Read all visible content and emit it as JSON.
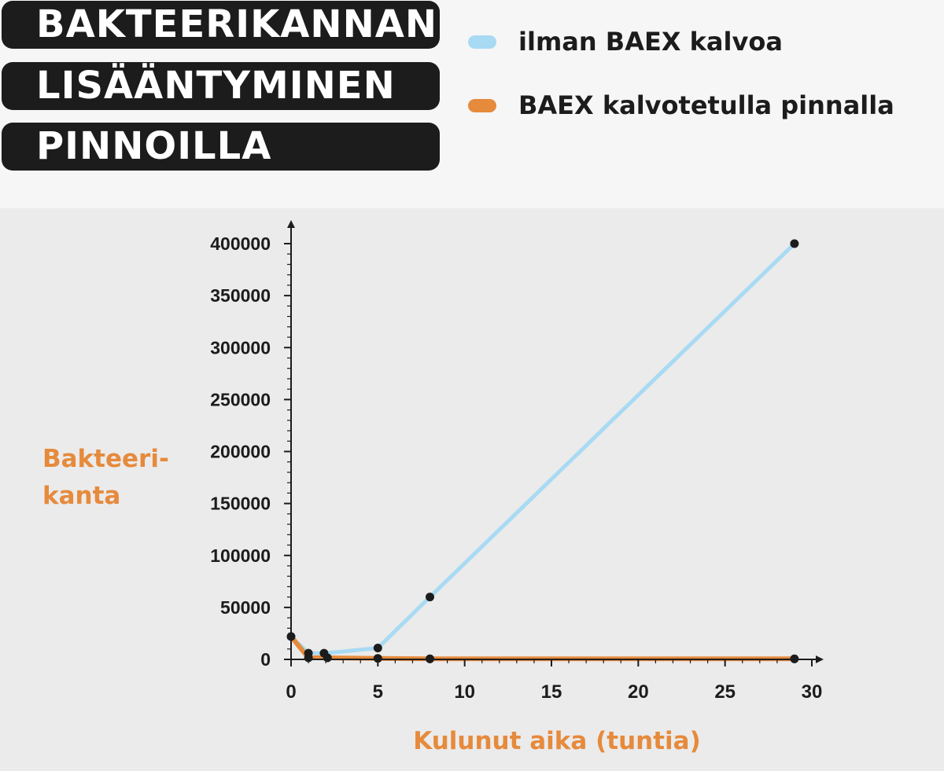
{
  "header": {
    "title_lines": [
      "BAKTEERIKANNAN",
      "LISÄÄNTYMINEN",
      "PINNOILLA"
    ]
  },
  "legend": [
    {
      "label": "ilman BAEX kalvoa",
      "color": "#a8daf3"
    },
    {
      "label": "BAEX kalvotetulla pinnalla",
      "color": "#e68a3c"
    }
  ],
  "chart_data": {
    "type": "line",
    "title": "BAKTEERIKANNAN LISÄÄNTYMINEN PINNOILLA",
    "xlabel": "Kulunut aika (tuntia)",
    "ylabel_lines": [
      "Bakteeri-",
      "kanta"
    ],
    "xlim": [
      0,
      30
    ],
    "ylim": [
      0,
      400000
    ],
    "xticks": [
      0,
      5,
      10,
      15,
      20,
      25,
      30
    ],
    "yticks": [
      0,
      50000,
      100000,
      150000,
      200000,
      250000,
      300000,
      350000,
      400000
    ],
    "grid": false,
    "legend_position": "top-right",
    "series": [
      {
        "name": "ilman BAEX kalvoa",
        "color": "#a8daf3",
        "points": [
          [
            0,
            22000
          ],
          [
            1,
            6000
          ],
          [
            2,
            6000
          ],
          [
            5,
            11000
          ],
          [
            8,
            60000
          ],
          [
            29,
            400000
          ]
        ]
      },
      {
        "name": "BAEX kalvotetulla pinnalla",
        "color": "#e68a3c",
        "points": [
          [
            0,
            22000
          ],
          [
            1,
            1500
          ],
          [
            2,
            1500
          ],
          [
            5,
            1000
          ],
          [
            8,
            500
          ],
          [
            29,
            500
          ]
        ]
      }
    ],
    "markers": [
      [
        0,
        22000
      ],
      [
        1,
        6000
      ],
      [
        1,
        1500
      ],
      [
        1.9,
        6000
      ],
      [
        2.1,
        1500
      ],
      [
        5,
        11000
      ],
      [
        5,
        1000
      ],
      [
        8,
        60000
      ],
      [
        8,
        500
      ],
      [
        29,
        400000
      ],
      [
        29,
        500
      ]
    ]
  }
}
